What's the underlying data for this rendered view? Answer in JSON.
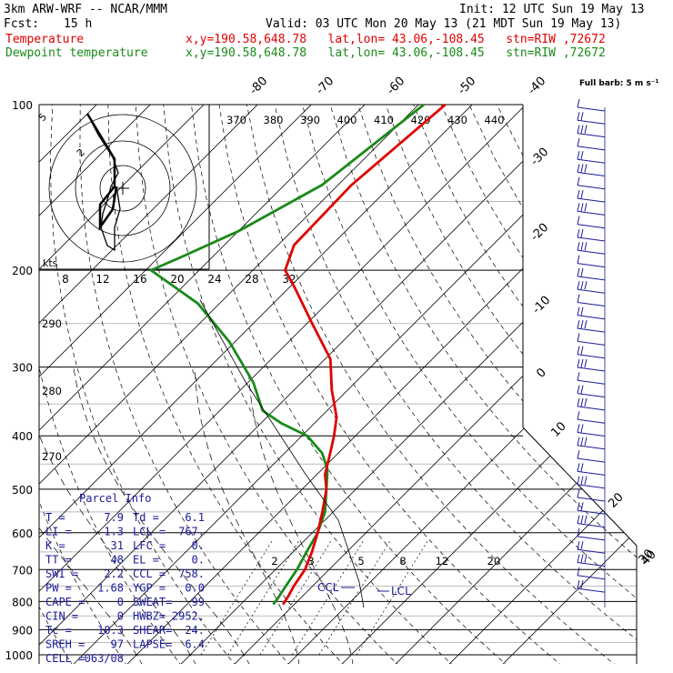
{
  "header": {
    "model": "3km ARW-WRF -- NCAR/MMM",
    "init": "Init: 12 UTC Sun 19 May 13",
    "fcst_label": "Fcst:",
    "fcst_value": "15 h",
    "valid": "Valid: 03 UTC Mon 20 May 13 (21 MDT Sun 19 May 13)",
    "temperature_label": "Temperature",
    "dewpoint_label": "Dewpoint temperature",
    "location_info": "x,y=190.58,648.78   lat,lon= 43.06,-108.45   stn=RIW ,72672"
  },
  "chart_data": {
    "type": "line",
    "subtype": "skew-T log-P diagram",
    "y_axis_pressure_ticks": [
      "100",
      "200",
      "300",
      "400",
      "500",
      "600",
      "700",
      "800",
      "900",
      "1000"
    ],
    "isotherm_labels": [
      "-80",
      "-70",
      "-60",
      "-50",
      "-40",
      "-30",
      "-20",
      "-10",
      "0",
      "10",
      "20",
      "30",
      "40"
    ],
    "theta_e_labels": [
      "370",
      "380",
      "390",
      "400",
      "410",
      "420",
      "430",
      "440"
    ],
    "theta_labels": [
      "290",
      "280",
      "270"
    ],
    "mixing_ratio_labels": [
      "2",
      "3",
      "5",
      "8",
      "12",
      "20"
    ],
    "hodograph_speed_labels": [
      "8",
      "12",
      "16",
      "20",
      "24",
      "28",
      "32"
    ],
    "hodograph_unit": "kts",
    "hodograph_dir_labels": [
      "5",
      "2"
    ],
    "wind_key": "Full barb: 5 m s⁻¹",
    "temperature_series": {
      "name": "Temperature",
      "color": "#e00000",
      "points": [
        [
          100,
          -55
        ],
        [
          140,
          -57.5
        ],
        [
          180,
          -57
        ],
        [
          200,
          -54
        ],
        [
          215,
          -49
        ],
        [
          250,
          -39
        ],
        [
          290,
          -29
        ],
        [
          330,
          -23
        ],
        [
          370,
          -17
        ],
        [
          400,
          -14
        ],
        [
          430,
          -11.5
        ],
        [
          470,
          -8.5
        ],
        [
          500,
          -5.5
        ],
        [
          550,
          -2
        ],
        [
          600,
          1
        ],
        [
          650,
          3.5
        ],
        [
          700,
          5.5
        ],
        [
          750,
          6.5
        ],
        [
          780,
          7.3
        ],
        [
          810,
          7.9
        ]
      ]
    },
    "dewpoint_series": {
      "name": "Dewpoint temperature",
      "color": "#1a8a1a",
      "points": [
        [
          100,
          -59
        ],
        [
          140,
          -63
        ],
        [
          170,
          -70
        ],
        [
          190,
          -76
        ],
        [
          200,
          -79
        ],
        [
          230,
          -64
        ],
        [
          270,
          -51
        ],
        [
          320,
          -39
        ],
        [
          360,
          -32
        ],
        [
          380,
          -26
        ],
        [
          400,
          -19
        ],
        [
          430,
          -13
        ],
        [
          460,
          -9
        ],
        [
          500,
          -5.5
        ],
        [
          550,
          -1.5
        ],
        [
          600,
          1
        ],
        [
          650,
          2.5
        ],
        [
          700,
          4
        ],
        [
          750,
          5
        ],
        [
          790,
          5.8
        ],
        [
          810,
          6.1
        ]
      ]
    },
    "level_markers": [
      "CCL",
      "LCL"
    ],
    "hodograph_points": [
      [
        -14,
        30
      ],
      [
        -4,
        24
      ],
      [
        -4,
        13
      ],
      [
        -8,
        6
      ],
      [
        -2,
        -1
      ],
      [
        -6,
        -10
      ],
      [
        -4,
        -16
      ]
    ]
  },
  "parcel_info": {
    "title": "Parcel Info",
    "rows": [
      [
        "T  =",
        "7.9",
        "Td =",
        "6.1"
      ],
      [
        "LI =",
        "1.3",
        "LCL =",
        "767."
      ],
      [
        "K  =",
        "31",
        "LFC =",
        "0."
      ],
      [
        "TT =",
        "48",
        "EL  =",
        "0."
      ],
      [
        "SWI =",
        "2.2",
        "CCL =",
        "758."
      ],
      [
        "PW =",
        "1.68",
        "YGP =",
        "0.0"
      ],
      [
        "CAPE =",
        "0",
        "SWEAT=",
        "99"
      ],
      [
        "CIN =",
        "0",
        "HWBZ=",
        "2952."
      ],
      [
        "Tc =",
        "10.3",
        "SHEAR=",
        "24."
      ],
      [
        "SREH =",
        "97",
        "LAPSE=",
        "6.4"
      ],
      [
        "CELL =",
        "063/08",
        "",
        ""
      ]
    ]
  }
}
